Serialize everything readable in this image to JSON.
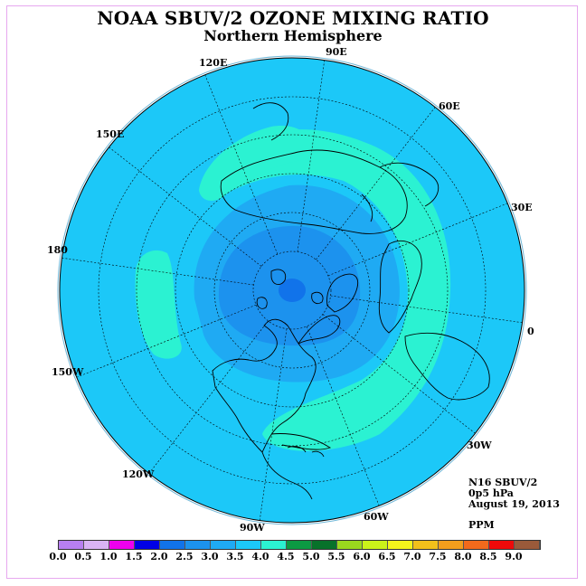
{
  "title": "NOAA SBUV/2 OZONE MIXING RATIO",
  "subtitle": "Northern Hemisphere",
  "longitude_labels": [
    "90E",
    "60E",
    "30E",
    "0",
    "30W",
    "60W",
    "90W",
    "120W",
    "150W",
    "180",
    "150E",
    "120E"
  ],
  "info": {
    "satellite": "N16 SBUV/2",
    "level": "0p5 hPa",
    "date": "August 19, 2013",
    "units": "PPM"
  },
  "colorbar": {
    "labels": [
      "0.0",
      "0.5",
      "1.0",
      "1.5",
      "2.0",
      "2.5",
      "3.0",
      "3.5",
      "4.0",
      "4.5",
      "5.0",
      "5.5",
      "6.0",
      "6.5",
      "7.0",
      "7.5",
      "8.0",
      "8.5",
      "9.0"
    ],
    "colors": [
      "#b77ff0",
      "#d9b3f5",
      "#ee00ee",
      "#0000e6",
      "#1173ea",
      "#1c92ee",
      "#1faaf3",
      "#1cc8f8",
      "#2bf2d2",
      "#0c9a43",
      "#07722a",
      "#9ad81e",
      "#cbf21a",
      "#f3f51c",
      "#f2c01b",
      "#f29e1d",
      "#f26a1c",
      "#ee0a0a",
      "#9a5a3a"
    ]
  },
  "palette": {
    "background_field": "#1cc8f8",
    "ring_field": "#2bf2d2",
    "inner_field": "#1faaf3",
    "core_field": "#1c92ee",
    "pole_field": "#1173ea",
    "frame": "#e7a8ef"
  }
}
